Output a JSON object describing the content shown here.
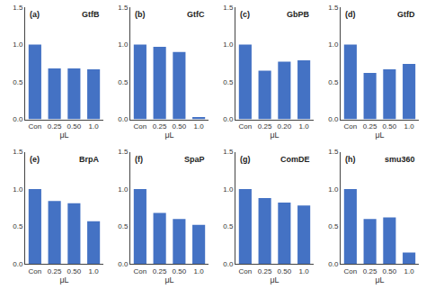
{
  "chart_data": [
    {
      "type": "bar",
      "title": "GtfB",
      "annotations": [
        "(a)"
      ],
      "xlabel": "μL",
      "categories": [
        "Con",
        "0.25",
        "0.50",
        "1.0"
      ],
      "values": [
        1.0,
        0.68,
        0.68,
        0.67
      ],
      "color": "#4472C4",
      "ylim": [
        0,
        1.5
      ],
      "yticks": [
        {
          "value": 0,
          "label": "0.0"
        },
        0.5,
        {
          "value": 1.0,
          "label": "1.0"
        },
        1.5
      ],
      "grid": false
    },
    {
      "type": "bar",
      "title": "GtfC",
      "annotations": [
        "(b)"
      ],
      "xlabel": "μL",
      "categories": [
        "Con",
        "0.25",
        "0.50",
        "1.0"
      ],
      "values": [
        1.0,
        0.97,
        0.9,
        0.03
      ],
      "color": "#4472C4",
      "ylim": [
        0,
        1.5
      ],
      "yticks": [
        {
          "value": 0,
          "label": "0.0"
        },
        0.5,
        {
          "value": 1.0,
          "label": "1.0"
        },
        1.5
      ],
      "grid": false
    },
    {
      "type": "bar",
      "title": "GbPB",
      "annotations": [
        "(c)"
      ],
      "xlabel": "μL",
      "categories": [
        "Con",
        "0.25",
        "0.20",
        "1.0"
      ],
      "values": [
        1.0,
        0.65,
        0.77,
        0.79
      ],
      "color": "#4472C4",
      "ylim": [
        0,
        1.5
      ],
      "yticks": [
        {
          "value": 0,
          "label": "0.0"
        },
        0.5,
        {
          "value": 1.0,
          "label": "1.0"
        },
        1.5
      ],
      "grid": false
    },
    {
      "type": "bar",
      "title": "GtfD",
      "annotations": [
        "(d)"
      ],
      "xlabel": "μL",
      "categories": [
        "Con",
        "0.25",
        "0.50",
        "1.0"
      ],
      "values": [
        1.0,
        0.62,
        0.67,
        0.74
      ],
      "color": "#4472C4",
      "ylim": [
        0,
        1.5
      ],
      "yticks": [
        {
          "value": 0,
          "label": "0.0"
        },
        0.5,
        {
          "value": 1.0,
          "label": "1.0"
        },
        1.5
      ],
      "grid": false
    },
    {
      "type": "bar",
      "title": "BrpA",
      "annotations": [
        "(e)"
      ],
      "xlabel": "μL",
      "categories": [
        "Con",
        "0.25",
        "0.50",
        "1.0"
      ],
      "values": [
        1.0,
        0.84,
        0.81,
        0.57
      ],
      "color": "#4472C4",
      "ylim": [
        0,
        1.5
      ],
      "yticks": [
        {
          "value": 0,
          "label": "0.0"
        },
        0.5,
        {
          "value": 1.0,
          "label": "1.0"
        },
        1.5
      ],
      "grid": false
    },
    {
      "type": "bar",
      "title": "SpaP",
      "annotations": [
        "(f)"
      ],
      "xlabel": "μL",
      "categories": [
        "Con",
        "0.25",
        "0.50",
        "1.0"
      ],
      "values": [
        1.0,
        0.68,
        0.6,
        0.52
      ],
      "color": "#4472C4",
      "ylim": [
        0,
        1.5
      ],
      "yticks": [
        {
          "value": 0,
          "label": "0.0"
        },
        0.5,
        {
          "value": 1.0,
          "label": "1.0"
        },
        1.5
      ],
      "grid": false
    },
    {
      "type": "bar",
      "title": "ComDE",
      "annotations": [
        "(g)"
      ],
      "xlabel": "μL",
      "categories": [
        "Con",
        "0.25",
        "0.50",
        "1.0"
      ],
      "values": [
        1.0,
        0.88,
        0.82,
        0.78
      ],
      "color": "#4472C4",
      "ylim": [
        0,
        1.5
      ],
      "yticks": [
        {
          "value": 0,
          "label": "0.0"
        },
        0.5,
        {
          "value": 1.0,
          "label": "1.0"
        },
        1.5
      ],
      "grid": false
    },
    {
      "type": "bar",
      "title": "smu360",
      "annotations": [
        "(h)"
      ],
      "xlabel": "μL",
      "categories": [
        "Con",
        "0.25",
        "0.50",
        "1.0"
      ],
      "values": [
        1.0,
        0.6,
        0.62,
        0.15
      ],
      "color": "#4472C4",
      "ylim": [
        0,
        1.5
      ],
      "yticks": [
        {
          "value": 0,
          "label": "0.0"
        },
        0.5,
        {
          "value": 1.0,
          "label": "1.0"
        },
        1.5
      ],
      "grid": false
    }
  ]
}
